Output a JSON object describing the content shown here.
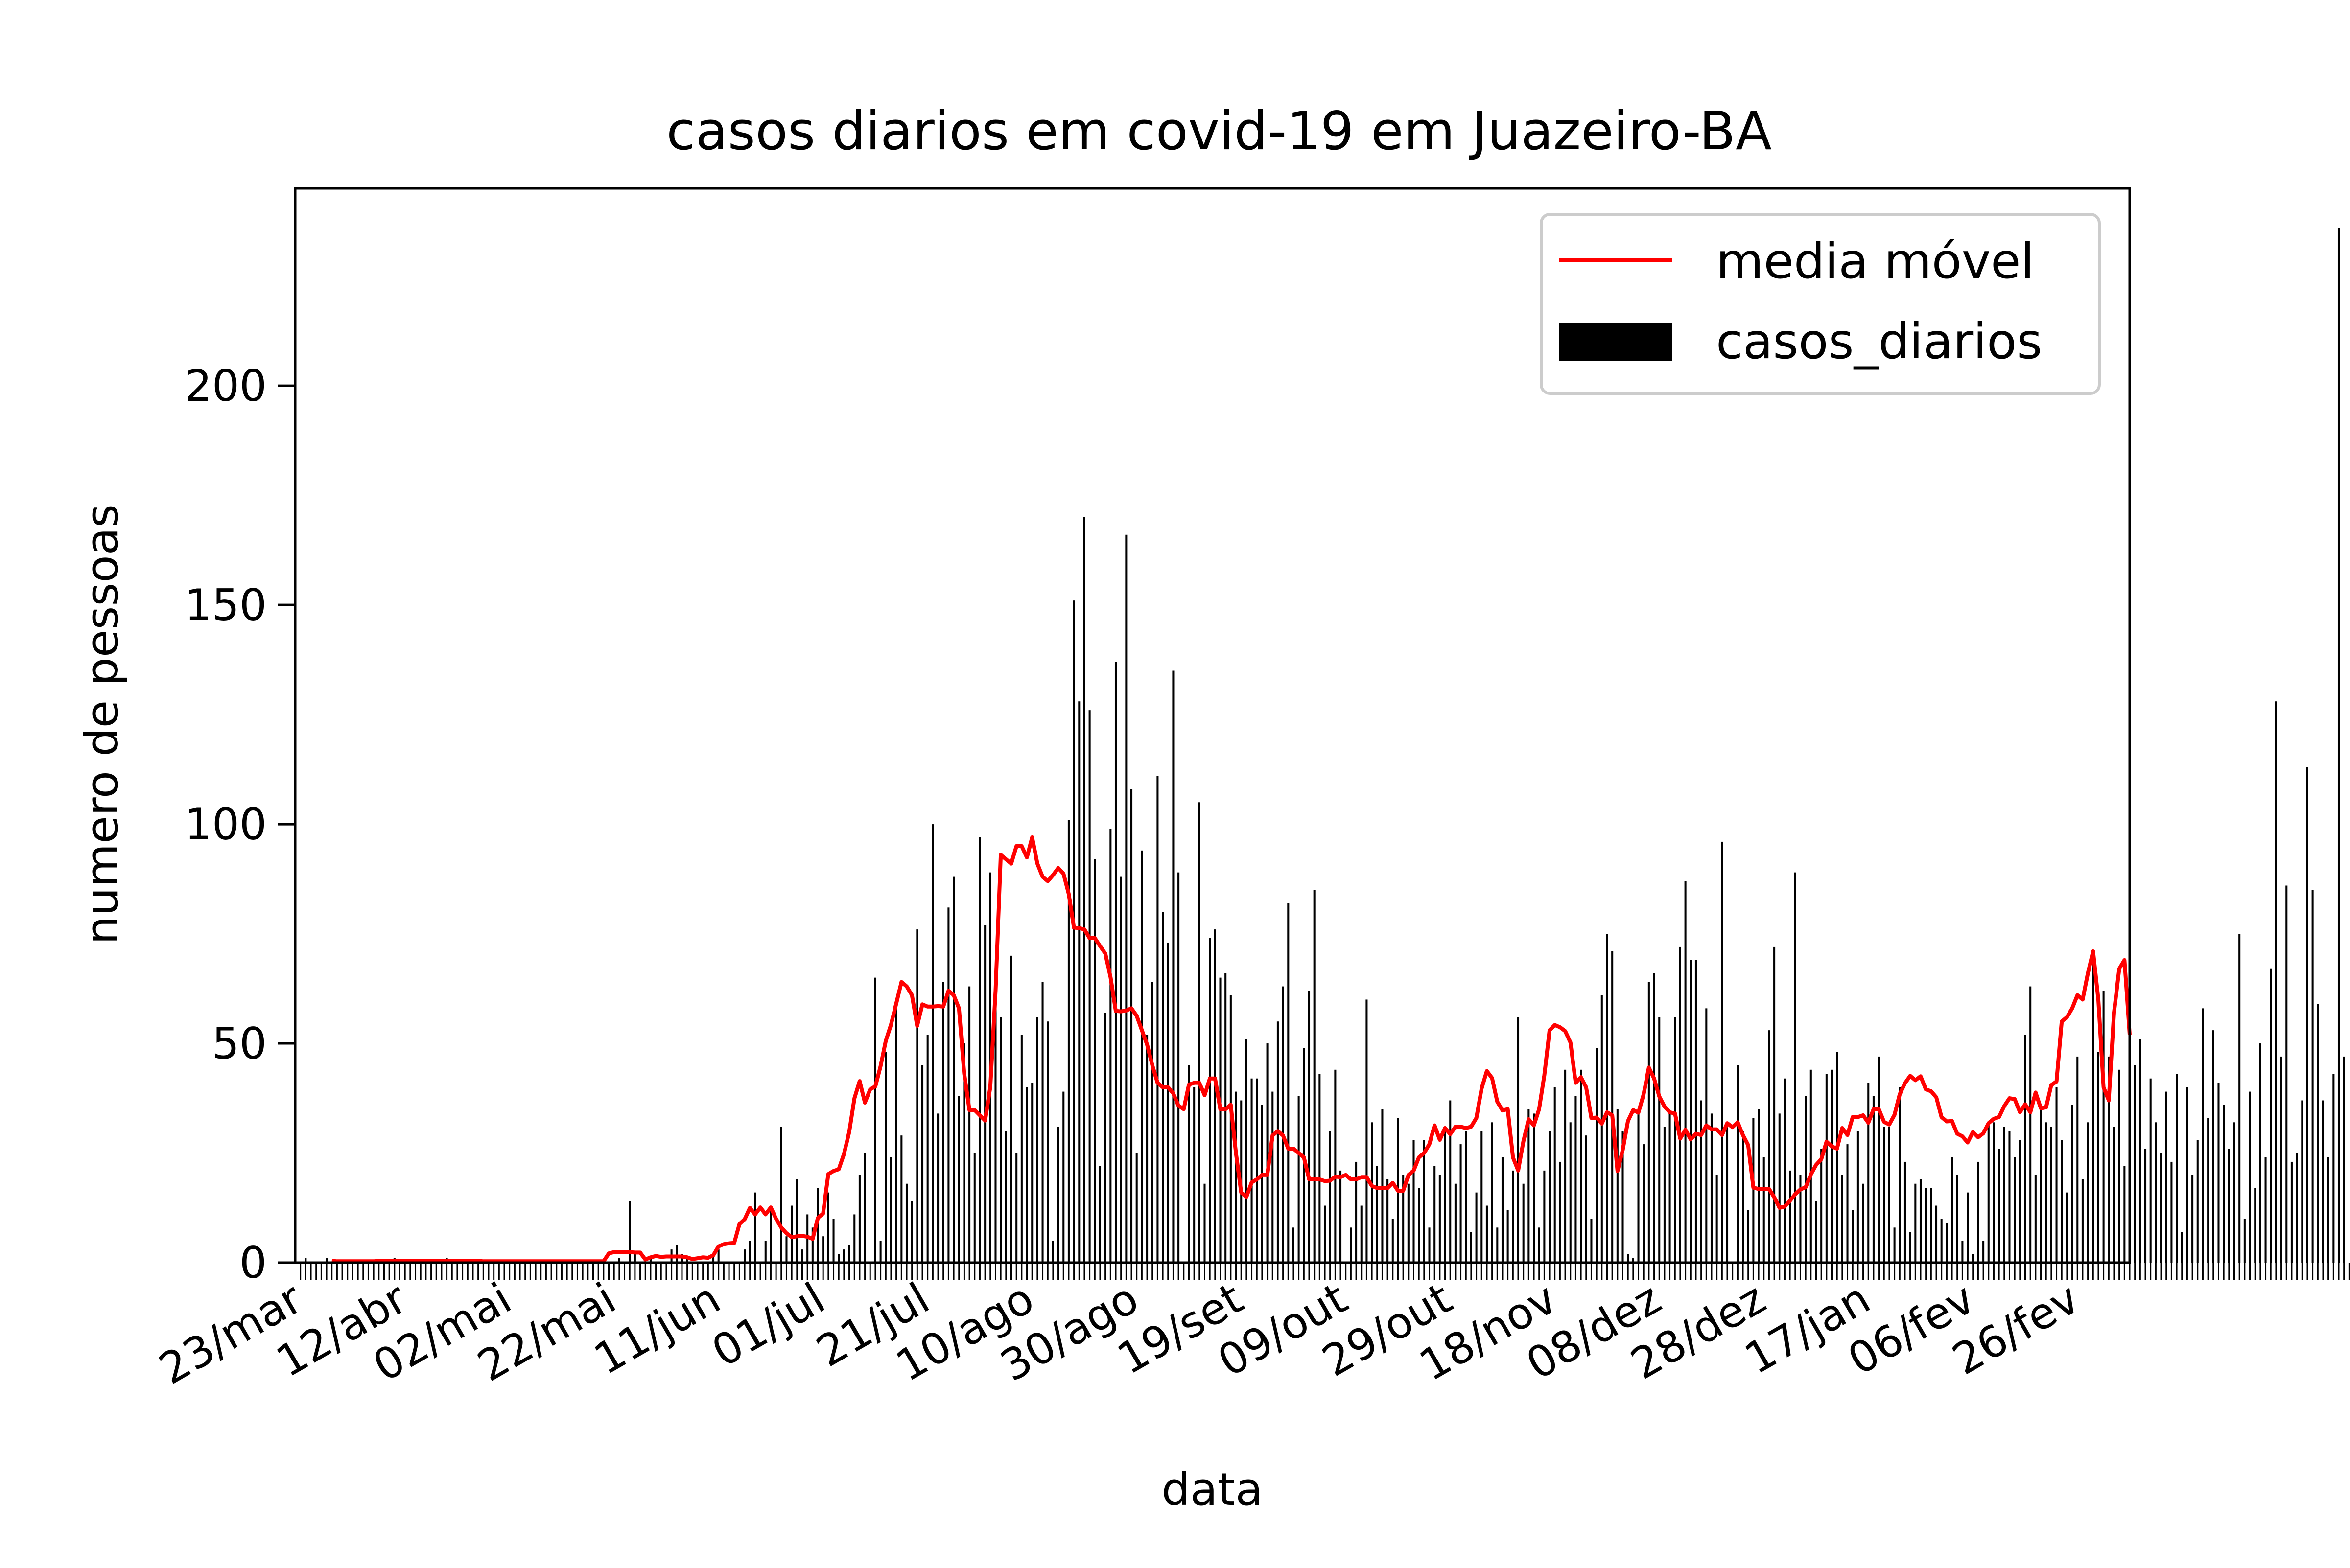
{
  "chart_data": {
    "type": "bar",
    "title": "casos diarios em covid-19 em Juazeiro-BA",
    "xlabel": "data",
    "ylabel": "numero de pessoas",
    "ylim": [
      0,
      245
    ],
    "yticks": [
      0,
      50,
      100,
      150,
      200
    ],
    "legend_placement": "top-right",
    "grid": false,
    "colors": {
      "bars": "#000000",
      "moving_average": "#ff0000"
    },
    "x_tick_labels": [
      "23/mar",
      "12/abr",
      "02/mai",
      "22/mai",
      "11/jun",
      "01/jul",
      "21/jul",
      "10/ago",
      "30/ago",
      "19/set",
      "09/out",
      "29/out",
      "18/nov",
      "08/dez",
      "28/dez",
      "17/jan",
      "06/fev",
      "26/fev"
    ],
    "x_tick_day_indices": [
      0,
      20,
      40,
      60,
      80,
      100,
      120,
      140,
      160,
      180,
      200,
      220,
      240,
      260,
      280,
      300,
      320,
      340
    ],
    "x_range": [
      -1,
      350
    ],
    "series": [
      {
        "name": "casos_diarios",
        "type": "bar",
        "values": [
          0,
          1,
          0,
          0,
          0,
          1,
          0,
          0,
          0,
          0,
          0,
          0,
          0,
          0,
          0,
          0,
          0,
          0,
          1,
          0,
          0,
          0,
          0,
          0,
          0,
          0,
          0,
          0,
          1,
          0,
          0,
          0,
          0,
          0,
          0,
          0,
          0,
          0,
          0,
          0,
          0,
          0,
          0,
          0,
          0,
          0,
          0,
          0,
          0,
          0,
          0,
          0,
          0,
          0,
          0,
          0,
          0,
          0,
          0,
          0,
          0,
          1,
          0,
          14,
          2,
          0,
          0,
          1,
          0,
          0,
          0,
          3,
          4,
          2,
          1,
          0,
          0,
          0,
          0,
          2,
          3,
          0,
          0,
          0,
          0,
          3,
          5,
          16,
          0,
          5,
          12,
          0,
          31,
          6,
          13,
          19,
          3,
          11,
          8,
          17,
          6,
          16,
          10,
          2,
          3,
          4,
          11,
          20,
          25,
          0,
          65,
          5,
          48,
          24,
          58,
          29,
          18,
          14,
          76,
          45,
          52,
          100,
          34,
          64,
          81,
          88,
          38,
          50,
          63,
          25,
          97,
          77,
          89,
          63,
          56,
          30,
          70,
          25,
          52,
          40,
          41,
          56,
          64,
          55,
          5,
          31,
          39,
          101,
          151,
          128,
          170,
          126,
          92,
          22,
          57,
          99,
          137,
          88,
          166,
          108,
          25,
          94,
          52,
          64,
          111,
          80,
          73,
          135,
          89,
          0,
          45,
          40,
          105,
          18,
          74,
          76,
          65,
          66,
          61,
          39,
          37,
          51,
          42,
          42,
          36,
          50,
          39,
          55,
          63,
          82,
          8,
          38,
          49,
          62,
          85,
          43,
          13,
          30,
          44,
          21,
          0,
          8,
          23,
          13,
          60,
          32,
          22,
          35,
          19,
          10,
          33,
          20,
          18,
          28,
          17,
          28,
          8,
          22,
          20,
          30,
          37,
          18,
          27,
          30,
          7,
          16,
          30,
          13,
          32,
          8,
          24,
          12,
          21,
          56,
          18,
          35,
          34,
          8,
          21,
          30,
          40,
          23,
          44,
          32,
          38,
          44,
          29,
          10,
          49,
          61,
          75,
          71,
          35,
          30,
          2,
          1,
          35,
          27,
          64,
          66,
          56,
          31,
          34,
          56,
          72,
          87,
          69,
          69,
          37,
          58,
          34,
          20,
          96,
          31,
          0,
          45,
          30,
          12,
          33,
          35,
          24,
          53,
          72,
          34,
          42,
          21,
          89,
          20,
          38,
          44,
          14,
          26,
          43,
          44,
          48,
          20,
          27,
          12,
          30,
          18,
          41,
          38,
          47,
          31,
          31,
          8,
          40,
          23,
          7,
          18,
          19,
          17,
          17,
          13,
          10,
          9,
          24,
          20,
          5,
          16,
          2,
          23,
          5,
          32,
          32,
          26,
          31,
          30,
          24,
          28,
          52,
          63,
          20,
          35,
          32,
          31,
          40,
          28,
          16,
          36,
          47,
          19,
          32,
          70,
          48,
          62,
          47,
          31,
          44,
          22,
          14,
          45,
          51,
          26,
          42,
          32,
          25,
          39,
          23,
          43,
          7,
          40,
          20,
          28,
          58,
          33,
          53,
          41,
          36,
          26,
          32,
          75,
          10,
          39,
          17,
          50,
          24,
          67,
          128,
          47,
          86,
          23,
          25,
          37,
          113,
          85,
          59,
          37,
          24,
          43,
          236,
          47,
          0
        ],
        "color": "#000000"
      },
      {
        "name": "media móvel",
        "type": "line",
        "start_index": 6,
        "values": [
          0.4,
          0.3,
          0.3,
          0.3,
          0.3,
          0.3,
          0.3,
          0.3,
          0.3,
          0.4,
          0.4,
          0.4,
          0.4,
          0.4,
          0.4,
          0.4,
          0.4,
          0.4,
          0.4,
          0.4,
          0.4,
          0.4,
          0.4,
          0.4,
          0.4,
          0.4,
          0.4,
          0.4,
          0.4,
          0.3,
          0.3,
          0.3,
          0.3,
          0.3,
          0.3,
          0.3,
          0.3,
          0.3,
          0.3,
          0.3,
          0.3,
          0.3,
          0.3,
          0.3,
          0.3,
          0.3,
          0.3,
          0.3,
          0.3,
          0.3,
          0.3,
          0.3,
          0.3,
          2.1,
          2.4,
          2.4,
          2.4,
          2.4,
          2.3,
          2.3,
          0.7,
          1.2,
          1.5,
          1.3,
          1.4,
          1.4,
          1.4,
          1.4,
          1.2,
          0.8,
          1.0,
          1.2,
          1.1,
          1.7,
          3.7,
          4.2,
          4.4,
          4.5,
          8.8,
          9.9,
          12.5,
          11.0,
          12.6,
          11.0,
          12.6,
          10.0,
          8.0,
          6.7,
          5.8,
          6.0,
          6.1,
          5.9,
          5.4,
          10.2,
          11.2,
          20.2,
          20.9,
          21.3,
          24.8,
          29.8,
          37.5,
          41.4,
          36.5,
          39.5,
          40.2,
          44.8,
          50.6,
          54.3,
          59.1,
          64.0,
          63.0,
          61.0,
          54.0,
          58.9,
          58.4,
          58.4,
          58.5,
          58.4,
          62.0,
          61.0,
          58.0,
          43.1,
          34.8,
          34.8,
          33.6,
          32.4,
          40.1,
          62.0,
          93.0,
          92.0,
          91.0,
          95.0,
          95.0,
          92.4,
          97.0,
          91.0,
          88.0,
          87.0,
          88.4,
          90.0,
          88.7,
          84.1,
          76.4,
          76.3,
          76.0,
          74.0,
          74.0,
          72.2,
          70.5,
          65.1,
          57.4,
          57.3,
          57.5,
          58.0,
          56.3,
          53.0,
          49.7,
          45.0,
          41.0,
          40.0,
          40.0,
          38.6,
          35.8,
          35.0,
          40.6,
          41.0,
          41.0,
          38.2,
          42.0,
          42.0,
          35.0,
          35.0,
          36.0,
          25.0,
          16.0,
          15.0,
          18.3,
          19.0,
          20.0,
          20.0,
          29.0,
          30.0,
          29.0,
          26.0,
          26.0,
          25.0,
          24.0,
          19.0,
          19.0,
          19.0,
          18.6,
          18.7,
          19.6,
          19.5,
          20.0,
          19.0,
          19.0,
          19.5,
          19.5,
          17.5,
          17.0,
          17.0,
          17.0,
          18.2,
          16.4,
          16.4,
          20.0,
          21.0,
          24.0,
          25.0,
          27.0,
          31.3,
          28.0,
          30.7,
          29.3,
          31.0,
          31.0,
          30.7,
          31.0,
          33.0,
          39.7,
          43.7,
          42.1,
          36.7,
          34.7,
          35.0,
          24.0,
          21.0,
          27.7,
          32.7,
          31.3,
          35.0,
          42.7,
          53.0,
          54.2,
          53.7,
          52.8,
          50.2,
          41.0,
          42.3,
          40.0,
          33.0,
          33.1,
          31.7,
          34.3,
          33.6,
          20.9,
          25.7,
          32.3,
          34.8,
          34.2,
          38.4,
          44.5,
          42.0,
          37.9,
          35.6,
          34.3,
          34.0,
          28.3,
          30.3,
          28.1,
          29.4,
          29.1,
          31.3,
          30.4,
          30.4,
          29.1,
          31.8,
          30.9,
          32.0,
          29.1,
          26.8,
          17.1,
          16.8,
          16.8,
          16.8,
          14.9,
          12.5,
          12.8,
          14.1,
          15.6,
          16.7,
          17.2,
          20.1,
          22.3,
          23.6,
          27.6,
          26.5,
          26.0,
          30.7,
          29.1,
          33.2,
          33.2,
          33.6,
          31.9,
          35.0,
          35.0,
          32.1,
          31.5,
          33.7,
          38.4,
          40.9,
          42.6,
          41.6,
          42.5,
          39.5,
          39.1,
          37.7,
          33.2,
          32.2,
          32.3,
          29.4,
          28.8,
          27.4,
          29.8,
          28.6,
          29.5,
          31.8,
          32.8,
          33.2,
          35.7,
          37.5,
          37.3,
          34.3,
          36.1,
          34.3,
          38.8,
          35.2,
          35.4,
          40.5,
          41.3,
          55.0,
          56.0,
          58.0,
          61.0,
          60.0,
          66.0,
          71.0,
          60.0,
          40.0,
          37.0,
          57.0,
          67.0,
          69.0,
          52.0
        ]
      }
    ]
  }
}
